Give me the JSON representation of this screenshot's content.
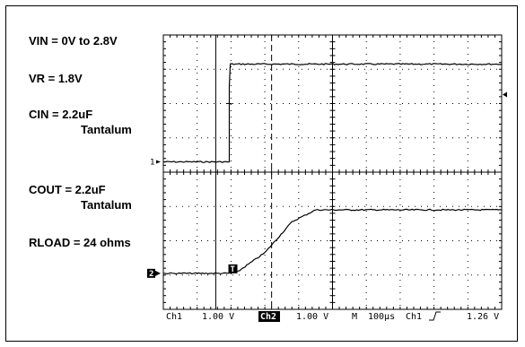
{
  "labels": {
    "vin": "VIN = 0V to 2.8V",
    "vr": "VR = 1.8V",
    "cin": "CIN = 2.2uF",
    "cin_type": "Tantalum",
    "cout": "COUT = 2.2uF",
    "cout_type": "Tantalum",
    "rload": "RLOAD = 24 ohms"
  },
  "status_bar": {
    "ch1": "Ch1",
    "ch1_scale": "1.00 V",
    "ch2": "Ch2",
    "ch2_scale": "1.00 V",
    "timebase_label": "M",
    "timebase": "100μs",
    "trigger_source": "Ch1",
    "trigger_level": "1.26 V"
  },
  "markers": {
    "ch1": "1",
    "ch2": "2",
    "trigger": "T"
  },
  "colors": {
    "trace": "#000000",
    "grid": "#000000",
    "background": "#ffffff"
  },
  "chart_data": {
    "type": "line",
    "divisions": {
      "x": 10,
      "y": 8
    },
    "xlim": [
      0,
      10
    ],
    "ylim": [
      -4,
      4
    ],
    "grid": true,
    "series": [
      {
        "channel": "Ch1",
        "x": [
          0,
          1.95,
          1.95,
          1.98,
          10
        ],
        "y": [
          0.3,
          0.3,
          2.5,
          3.15,
          3.15
        ]
      },
      {
        "channel": "Ch2",
        "x": [
          0,
          1.95,
          2.2,
          3,
          3.8,
          4.5,
          10
        ],
        "y": [
          -2.95,
          -2.95,
          -2.9,
          -2.35,
          -1.45,
          -1.1,
          -1.1
        ]
      }
    ],
    "cursors_x": [
      1.55,
      3.2
    ],
    "cursor_dashed_x": 3.2
  }
}
